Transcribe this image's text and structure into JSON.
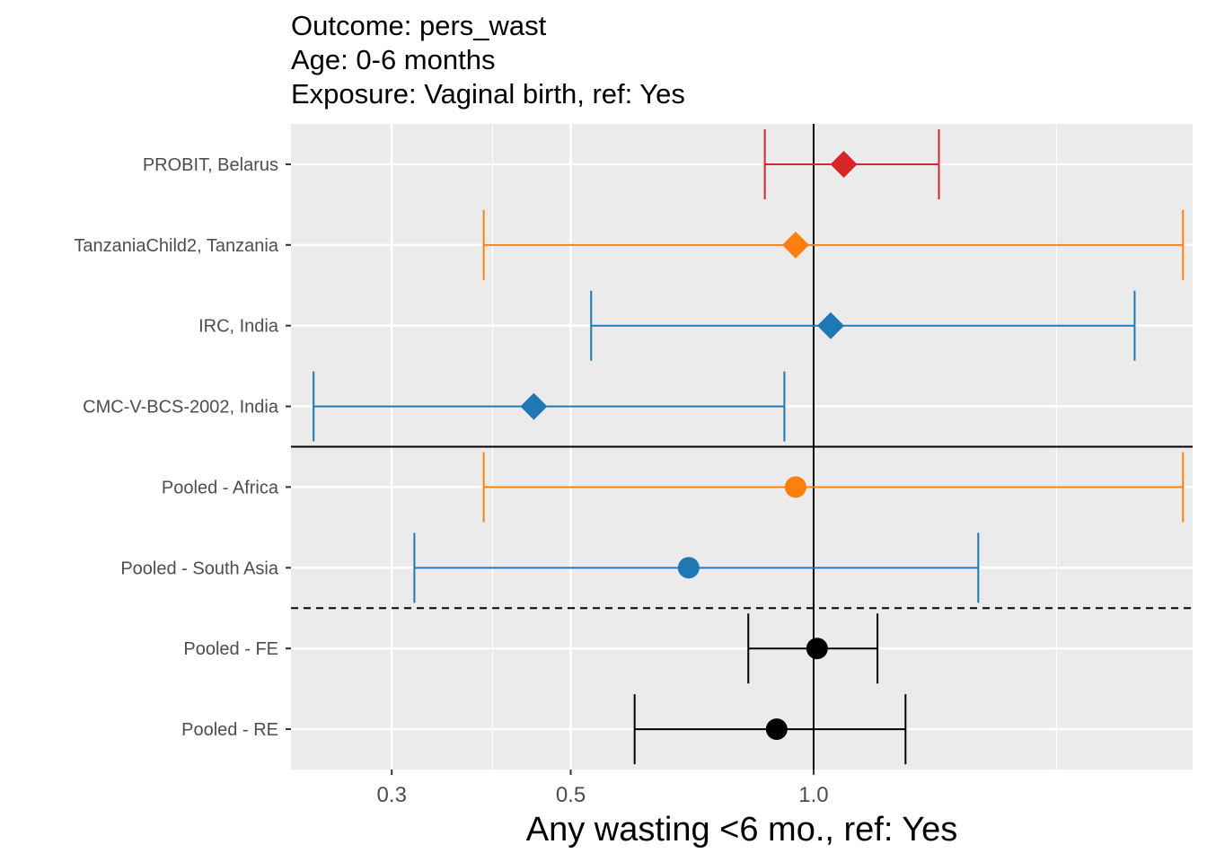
{
  "chart_data": {
    "type": "forest",
    "title_lines": [
      "Outcome: pers_wast",
      "Age: 0-6 months",
      "Exposure: Vaginal birth, ref: Yes"
    ],
    "xlabel": "Any wasting  <6 mo., ref: Yes",
    "x_scale": "log",
    "xlim": [
      0.225,
      2.95
    ],
    "x_ticks": [
      {
        "value": 0.3,
        "label": "0.3"
      },
      {
        "value": 0.5,
        "label": "0.5"
      },
      {
        "value": 1.0,
        "label": "1.0"
      }
    ],
    "x_minor_gridlines": [
      0.4,
      2.0
    ],
    "reference_line": 1.0,
    "grid": true,
    "rows": [
      {
        "label": "PROBIT, Belarus",
        "estimate": 1.09,
        "lower": 0.87,
        "upper": 1.43,
        "color": "#d62728",
        "shape": "diamond"
      },
      {
        "label": "TanzaniaChild2, Tanzania",
        "estimate": 0.95,
        "lower": 0.39,
        "upper": 2.87,
        "color": "#ff7f0e",
        "shape": "diamond"
      },
      {
        "label": "IRC, India",
        "estimate": 1.05,
        "lower": 0.53,
        "upper": 2.5,
        "color": "#1f77b4",
        "shape": "diamond"
      },
      {
        "label": "CMC-V-BCS-2002, India",
        "estimate": 0.45,
        "lower": 0.24,
        "upper": 0.92,
        "color": "#1f77b4",
        "shape": "diamond"
      },
      {
        "label": "Pooled - Africa",
        "estimate": 0.95,
        "lower": 0.39,
        "upper": 2.87,
        "color": "#ff7f0e",
        "shape": "circle"
      },
      {
        "label": "Pooled - South Asia",
        "estimate": 0.7,
        "lower": 0.32,
        "upper": 1.6,
        "color": "#1f77b4",
        "shape": "circle"
      },
      {
        "label": "Pooled - FE",
        "estimate": 1.01,
        "lower": 0.83,
        "upper": 1.2,
        "color": "#000000",
        "shape": "circle"
      },
      {
        "label": "Pooled - RE",
        "estimate": 0.9,
        "lower": 0.6,
        "upper": 1.3,
        "color": "#000000",
        "shape": "circle"
      }
    ],
    "separators": [
      {
        "after_row": 3,
        "style": "solid"
      },
      {
        "after_row": 5,
        "style": "dashed"
      }
    ]
  }
}
